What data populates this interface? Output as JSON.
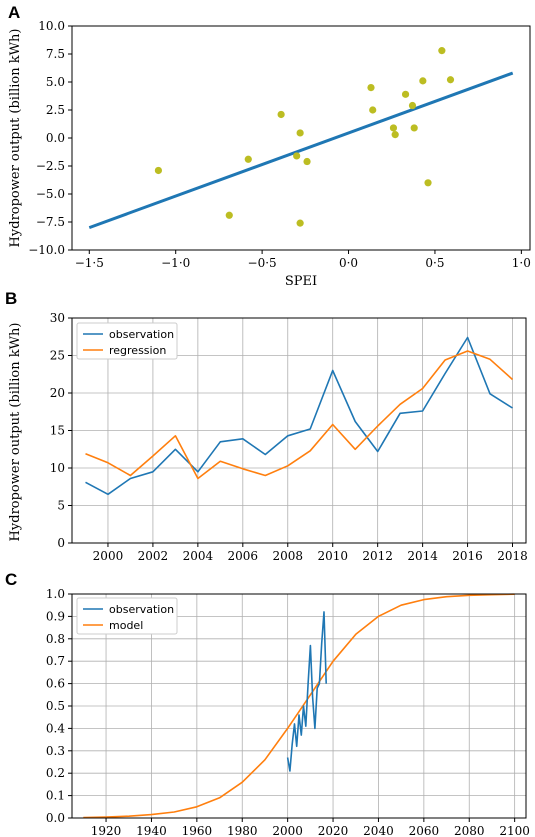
{
  "colors": {
    "scatter_point": "#bcbd22",
    "fit_line": "#1f77b4",
    "observation": "#1f77b4",
    "regression": "#ff7f0e",
    "model": "#ff7f0e",
    "grid": "#b0b0b0"
  },
  "chart_data": [
    {
      "panel_label": "A",
      "type": "scatter",
      "title": "",
      "xlabel": "SPEI",
      "ylabel": "Hydropower output (billion kWh)",
      "xlim": [
        -1.6,
        1.05
      ],
      "ylim": [
        -10.0,
        10.0
      ],
      "grid": false,
      "xticks": [
        -1.5,
        -1.0,
        -0.5,
        0.0,
        0.5,
        1.0
      ],
      "xtick_labels": [
        "−1·5",
        "−1·0",
        "−0·5",
        "0·0",
        "0·5",
        "1·0"
      ],
      "yticks": [
        -10.0,
        -7.5,
        -5.0,
        -2.5,
        0.0,
        2.5,
        5.0,
        7.5,
        10.0
      ],
      "ytick_labels": [
        "−10.0",
        "−7.5",
        "−5.0",
        "−2.5",
        "0.0",
        "2.5",
        "5.0",
        "7.5",
        "10.0"
      ],
      "points": [
        {
          "x": -1.1,
          "y": -2.9
        },
        {
          "x": -0.69,
          "y": -6.9
        },
        {
          "x": -0.58,
          "y": -1.9
        },
        {
          "x": -0.39,
          "y": 2.1
        },
        {
          "x": -0.3,
          "y": -1.6
        },
        {
          "x": -0.28,
          "y": 0.45
        },
        {
          "x": -0.28,
          "y": -7.6
        },
        {
          "x": -0.24,
          "y": -2.1
        },
        {
          "x": 0.13,
          "y": 4.5
        },
        {
          "x": 0.14,
          "y": 2.5
        },
        {
          "x": 0.26,
          "y": 0.9
        },
        {
          "x": 0.27,
          "y": 0.3
        },
        {
          "x": 0.33,
          "y": 3.9
        },
        {
          "x": 0.37,
          "y": 2.9
        },
        {
          "x": 0.38,
          "y": 0.9
        },
        {
          "x": 0.43,
          "y": 5.1
        },
        {
          "x": 0.46,
          "y": -4.0
        },
        {
          "x": 0.54,
          "y": 7.8
        },
        {
          "x": 0.59,
          "y": 5.2
        }
      ],
      "fit_line": {
        "x": [
          -1.5,
          0.95
        ],
        "y": [
          -8.0,
          5.8
        ]
      }
    },
    {
      "panel_label": "B",
      "type": "line",
      "title": "",
      "xlabel": "",
      "ylabel": "Hydropower output (billion kWh)",
      "xlim": [
        1998.4,
        2018.6
      ],
      "ylim": [
        0,
        30
      ],
      "grid": true,
      "legend_position": "top-left",
      "xticks": [
        2000,
        2002,
        2004,
        2006,
        2008,
        2010,
        2012,
        2014,
        2016,
        2018
      ],
      "xtick_labels": [
        "2000",
        "2002",
        "2004",
        "2006",
        "2008",
        "2010",
        "2012",
        "2014",
        "2016",
        "2018"
      ],
      "yticks": [
        0,
        5,
        10,
        15,
        20,
        25,
        30
      ],
      "ytick_labels": [
        "0",
        "5",
        "10",
        "15",
        "20",
        "25",
        "30"
      ],
      "x": [
        1999,
        2000,
        2001,
        2002,
        2003,
        2004,
        2005,
        2006,
        2007,
        2008,
        2009,
        2010,
        2011,
        2012,
        2013,
        2014,
        2015,
        2016,
        2017,
        2018
      ],
      "series": [
        {
          "name": "observation",
          "values": [
            8.1,
            6.5,
            8.6,
            9.5,
            12.5,
            9.5,
            13.5,
            13.9,
            11.8,
            14.3,
            15.2,
            23.0,
            16.2,
            12.2,
            17.3,
            17.6,
            22.6,
            27.4,
            19.9,
            18.0
          ]
        },
        {
          "name": "regression",
          "values": [
            11.9,
            10.7,
            9.0,
            11.6,
            14.3,
            8.6,
            10.9,
            9.9,
            9.0,
            10.3,
            12.3,
            15.8,
            12.5,
            15.6,
            18.5,
            20.6,
            24.4,
            25.6,
            24.5,
            21.8
          ]
        }
      ]
    },
    {
      "panel_label": "C",
      "type": "line",
      "title": "",
      "xlabel": "",
      "ylabel": "",
      "xlim": [
        1905,
        2105
      ],
      "ylim": [
        0.0,
        1.0
      ],
      "grid": true,
      "legend_position": "top-left",
      "xticks": [
        1920,
        1940,
        1960,
        1980,
        2000,
        2020,
        2040,
        2060,
        2080,
        2100
      ],
      "xtick_labels": [
        "1920",
        "1940",
        "1960",
        "1980",
        "2000",
        "2020",
        "2040",
        "2060",
        "2080",
        "2100"
      ],
      "yticks": [
        0.0,
        0.1,
        0.2,
        0.3,
        0.4,
        0.5,
        0.6,
        0.7,
        0.8,
        0.9,
        1.0
      ],
      "ytick_labels": [
        "0.0",
        "0.1",
        "0.2",
        "0.3",
        "0.4",
        "0.5",
        "0.6",
        "0.7",
        "0.8",
        "0.9",
        "1.0"
      ],
      "series": [
        {
          "name": "observation",
          "x": [
            2000,
            2001,
            2002,
            2003,
            2004,
            2005,
            2006,
            2007,
            2008,
            2009,
            2010,
            2011,
            2012,
            2013,
            2014,
            2015,
            2016,
            2017
          ],
          "values": [
            0.27,
            0.21,
            0.33,
            0.42,
            0.32,
            0.46,
            0.37,
            0.5,
            0.41,
            0.6,
            0.77,
            0.54,
            0.4,
            0.58,
            0.6,
            0.78,
            0.92,
            0.6
          ]
        },
        {
          "name": "model",
          "x": [
            1910,
            1920,
            1930,
            1940,
            1950,
            1960,
            1970,
            1980,
            1990,
            2000,
            2010,
            2020,
            2030,
            2040,
            2050,
            2060,
            2070,
            2080,
            2090,
            2100
          ],
          "values": [
            0.002,
            0.004,
            0.008,
            0.015,
            0.027,
            0.05,
            0.09,
            0.16,
            0.26,
            0.4,
            0.55,
            0.7,
            0.82,
            0.9,
            0.95,
            0.975,
            0.988,
            0.994,
            0.997,
            0.999
          ]
        }
      ]
    }
  ]
}
